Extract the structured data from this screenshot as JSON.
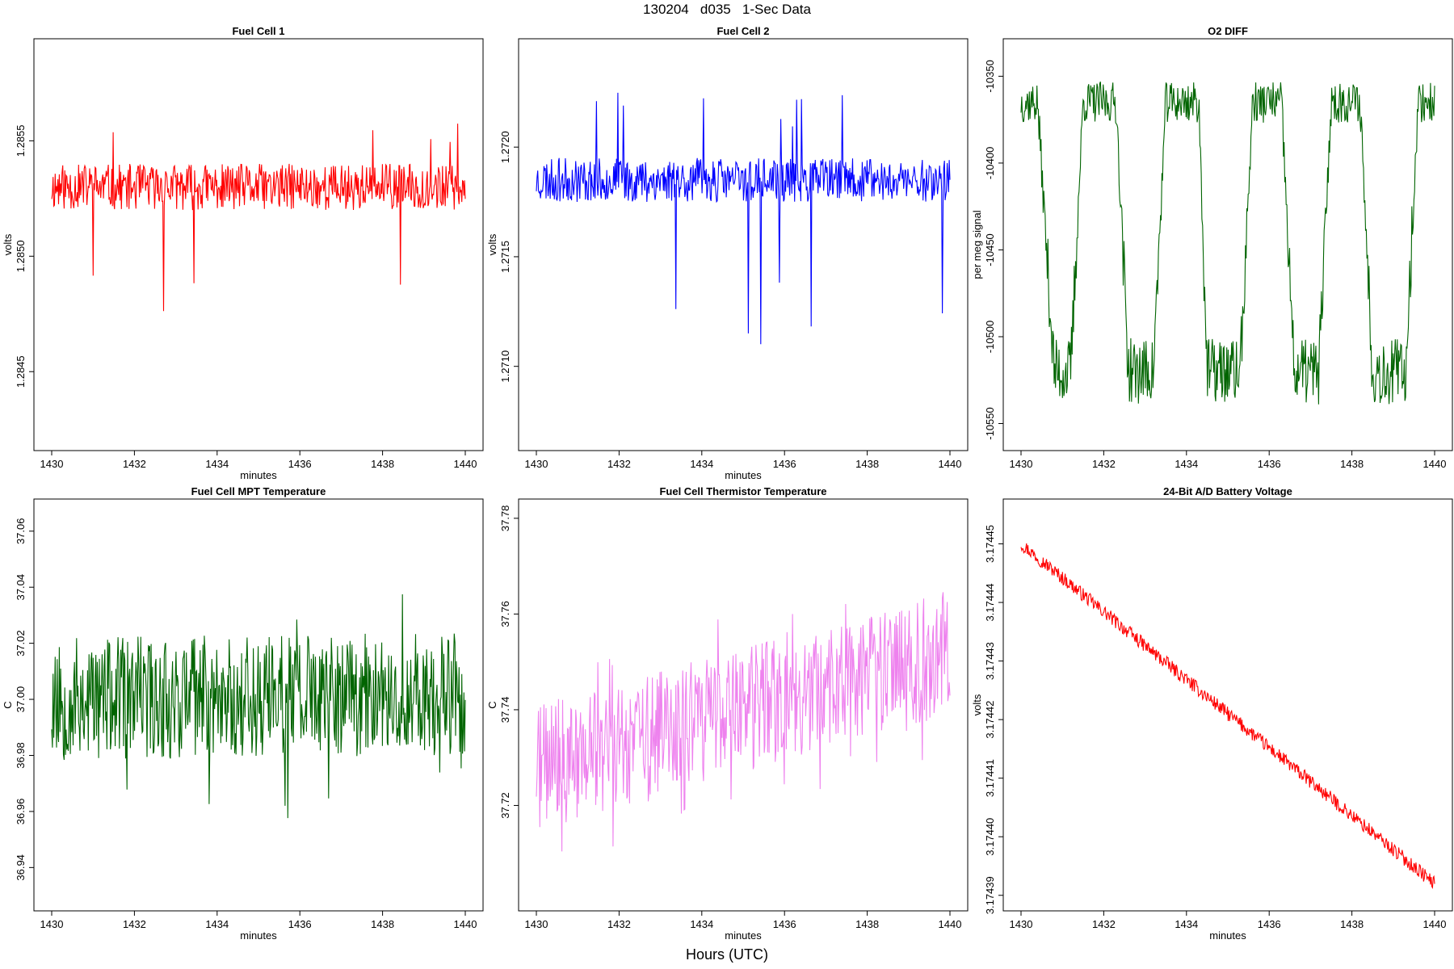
{
  "page": {
    "title": "130204   d035   1-Sec Data",
    "footer": "Hours (UTC)"
  },
  "chart_data": [
    {
      "type": "line",
      "title": "Fuel Cell 1",
      "xlabel": "minutes",
      "ylabel": "volts",
      "color": "#ff0000",
      "xlim": [
        1430,
        1440
      ],
      "ylim": [
        1.2842,
        1.2859
      ],
      "xticks": [
        "1430",
        "1432",
        "1434",
        "1436",
        "1438",
        "1440"
      ],
      "xtick_values": [
        1430,
        1432,
        1434,
        1436,
        1438,
        1440
      ],
      "yticks": [
        "1.2845",
        "1.2850",
        "1.2855"
      ],
      "ytick_values": [
        1.2845,
        1.285,
        1.2855
      ],
      "series": [
        {
          "generator": {
            "kind": "noise",
            "n": 600,
            "start": 1.2853,
            "end": 1.2853,
            "amp": 0.0001,
            "spike_down": 0.00065,
            "spike_up": 0.0003,
            "spike_prob": 0.02,
            "seed": 11
          }
        }
      ]
    },
    {
      "type": "line",
      "title": "Fuel Cell 2",
      "xlabel": "minutes",
      "ylabel": "volts",
      "color": "#0000ff",
      "xlim": [
        1430,
        1440
      ],
      "ylim": [
        1.27066,
        1.27245
      ],
      "xticks": [
        "1430",
        "1432",
        "1434",
        "1436",
        "1438",
        "1440"
      ],
      "xtick_values": [
        1430,
        1432,
        1434,
        1436,
        1438,
        1440
      ],
      "yticks": [
        "1.2710",
        "1.2715",
        "1.2720"
      ],
      "ytick_values": [
        1.271,
        1.2715,
        1.272
      ],
      "series": [
        {
          "generator": {
            "kind": "noise",
            "n": 600,
            "start": 1.27185,
            "end": 1.27185,
            "amp": 0.0001,
            "spike_down": 0.00075,
            "spike_up": 0.0004,
            "spike_prob": 0.02,
            "seed": 23
          }
        }
      ]
    },
    {
      "type": "line",
      "title": "O2 DIFF",
      "xlabel": "",
      "ylabel": "per meg signal",
      "color": "#006400",
      "xlim": [
        1430,
        1440
      ],
      "ylim": [
        -10560,
        -10334
      ],
      "xticks": [
        "1430",
        "1432",
        "1434",
        "1436",
        "1438",
        "1440"
      ],
      "xtick_values": [
        1430,
        1432,
        1434,
        1436,
        1438,
        1440
      ],
      "yticks": [
        "-10550",
        "-10500",
        "-10450",
        "-10400",
        "-10350"
      ],
      "ytick_values": [
        -10550,
        -10500,
        -10450,
        -10400,
        -10350
      ],
      "series": [
        {
          "generator": {
            "kind": "square",
            "n": 600,
            "high": -10365,
            "low": -10520,
            "amp": 12,
            "seed": 37,
            "segments": [
              [
                1430.0,
                1430.4,
                "high"
              ],
              [
                1430.4,
                1430.8,
                "drop"
              ],
              [
                1430.8,
                1431.2,
                "low"
              ],
              [
                1431.2,
                1431.5,
                "rise"
              ],
              [
                1431.5,
                1432.3,
                "high"
              ],
              [
                1432.3,
                1432.6,
                "drop"
              ],
              [
                1432.6,
                1433.2,
                "low"
              ],
              [
                1433.2,
                1433.5,
                "rise"
              ],
              [
                1433.5,
                1434.3,
                "high"
              ],
              [
                1434.3,
                1434.5,
                "drop"
              ],
              [
                1434.5,
                1435.3,
                "low"
              ],
              [
                1435.3,
                1435.6,
                "rise"
              ],
              [
                1435.6,
                1436.3,
                "high"
              ],
              [
                1436.3,
                1436.6,
                "drop"
              ],
              [
                1436.6,
                1437.2,
                "low"
              ],
              [
                1437.2,
                1437.5,
                "rise"
              ],
              [
                1437.5,
                1438.2,
                "high"
              ],
              [
                1438.2,
                1438.5,
                "drop"
              ],
              [
                1438.5,
                1439.3,
                "low"
              ],
              [
                1439.3,
                1439.6,
                "rise"
              ],
              [
                1439.6,
                1440.0,
                "high"
              ]
            ]
          }
        }
      ]
    },
    {
      "type": "line",
      "title": "Fuel Cell MPT Temperature",
      "xlabel": "minutes",
      "ylabel": "C",
      "color": "#006400",
      "xlim": [
        1430,
        1440
      ],
      "ylim": [
        36.928,
        37.068
      ],
      "xticks": [
        "1430",
        "1432",
        "1434",
        "1436",
        "1438",
        "1440"
      ],
      "xtick_values": [
        1430,
        1432,
        1434,
        1436,
        1438,
        1440
      ],
      "yticks": [
        "36.94",
        "36.96",
        "36.98",
        "37.00",
        "37.02",
        "37.04",
        "37.06"
      ],
      "ytick_values": [
        36.94,
        36.96,
        36.98,
        37.0,
        37.02,
        37.04,
        37.06
      ],
      "series": [
        {
          "generator": {
            "kind": "noise",
            "n": 600,
            "start": 37.0,
            "end": 37.002,
            "amp": 0.022,
            "spike_down": 0.045,
            "spike_up": 0.045,
            "spike_prob": 0.02,
            "seed": 53
          }
        }
      ]
    },
    {
      "type": "line",
      "title": "Fuel Cell Thermistor Temperature",
      "xlabel": "minutes",
      "ylabel": "C",
      "color": "#ee82ee",
      "xlim": [
        1430,
        1440
      ],
      "ylim": [
        37.7,
        37.782
      ],
      "xticks": [
        "1430",
        "1432",
        "1434",
        "1436",
        "1438",
        "1440"
      ],
      "xtick_values": [
        1430,
        1432,
        1434,
        1436,
        1438,
        1440
      ],
      "yticks": [
        "37.72",
        "37.74",
        "37.76",
        "37.78"
      ],
      "ytick_values": [
        37.72,
        37.74,
        37.76,
        37.78
      ],
      "series": [
        {
          "generator": {
            "kind": "noise",
            "n": 600,
            "start": 37.728,
            "end": 37.752,
            "amp": 0.013,
            "spike_down": 0.022,
            "spike_up": 0.022,
            "spike_prob": 0.03,
            "seed": 71
          }
        }
      ]
    },
    {
      "type": "line",
      "title": "24-Bit A/D Battery Voltage",
      "xlabel": "minutes",
      "ylabel": "volts",
      "color": "#ff0000",
      "xlim": [
        1430,
        1440
      ],
      "ylim": [
        3.174389,
        3.174456
      ],
      "xticks": [
        "1430",
        "1432",
        "1434",
        "1436",
        "1438",
        "1440"
      ],
      "xtick_values": [
        1430,
        1432,
        1434,
        1436,
        1438,
        1440
      ],
      "yticks": [
        "3.17439",
        "3.17440",
        "3.17441",
        "3.17442",
        "3.17443",
        "3.17444",
        "3.17445"
      ],
      "ytick_values": [
        3.17439,
        3.1744,
        3.17441,
        3.17442,
        3.17443,
        3.17444,
        3.17445
      ],
      "series": [
        {
          "generator": {
            "kind": "trend",
            "n": 600,
            "start": 3.17445,
            "end": 3.174392,
            "amp": 1.2e-06,
            "seed": 97
          }
        }
      ]
    }
  ]
}
